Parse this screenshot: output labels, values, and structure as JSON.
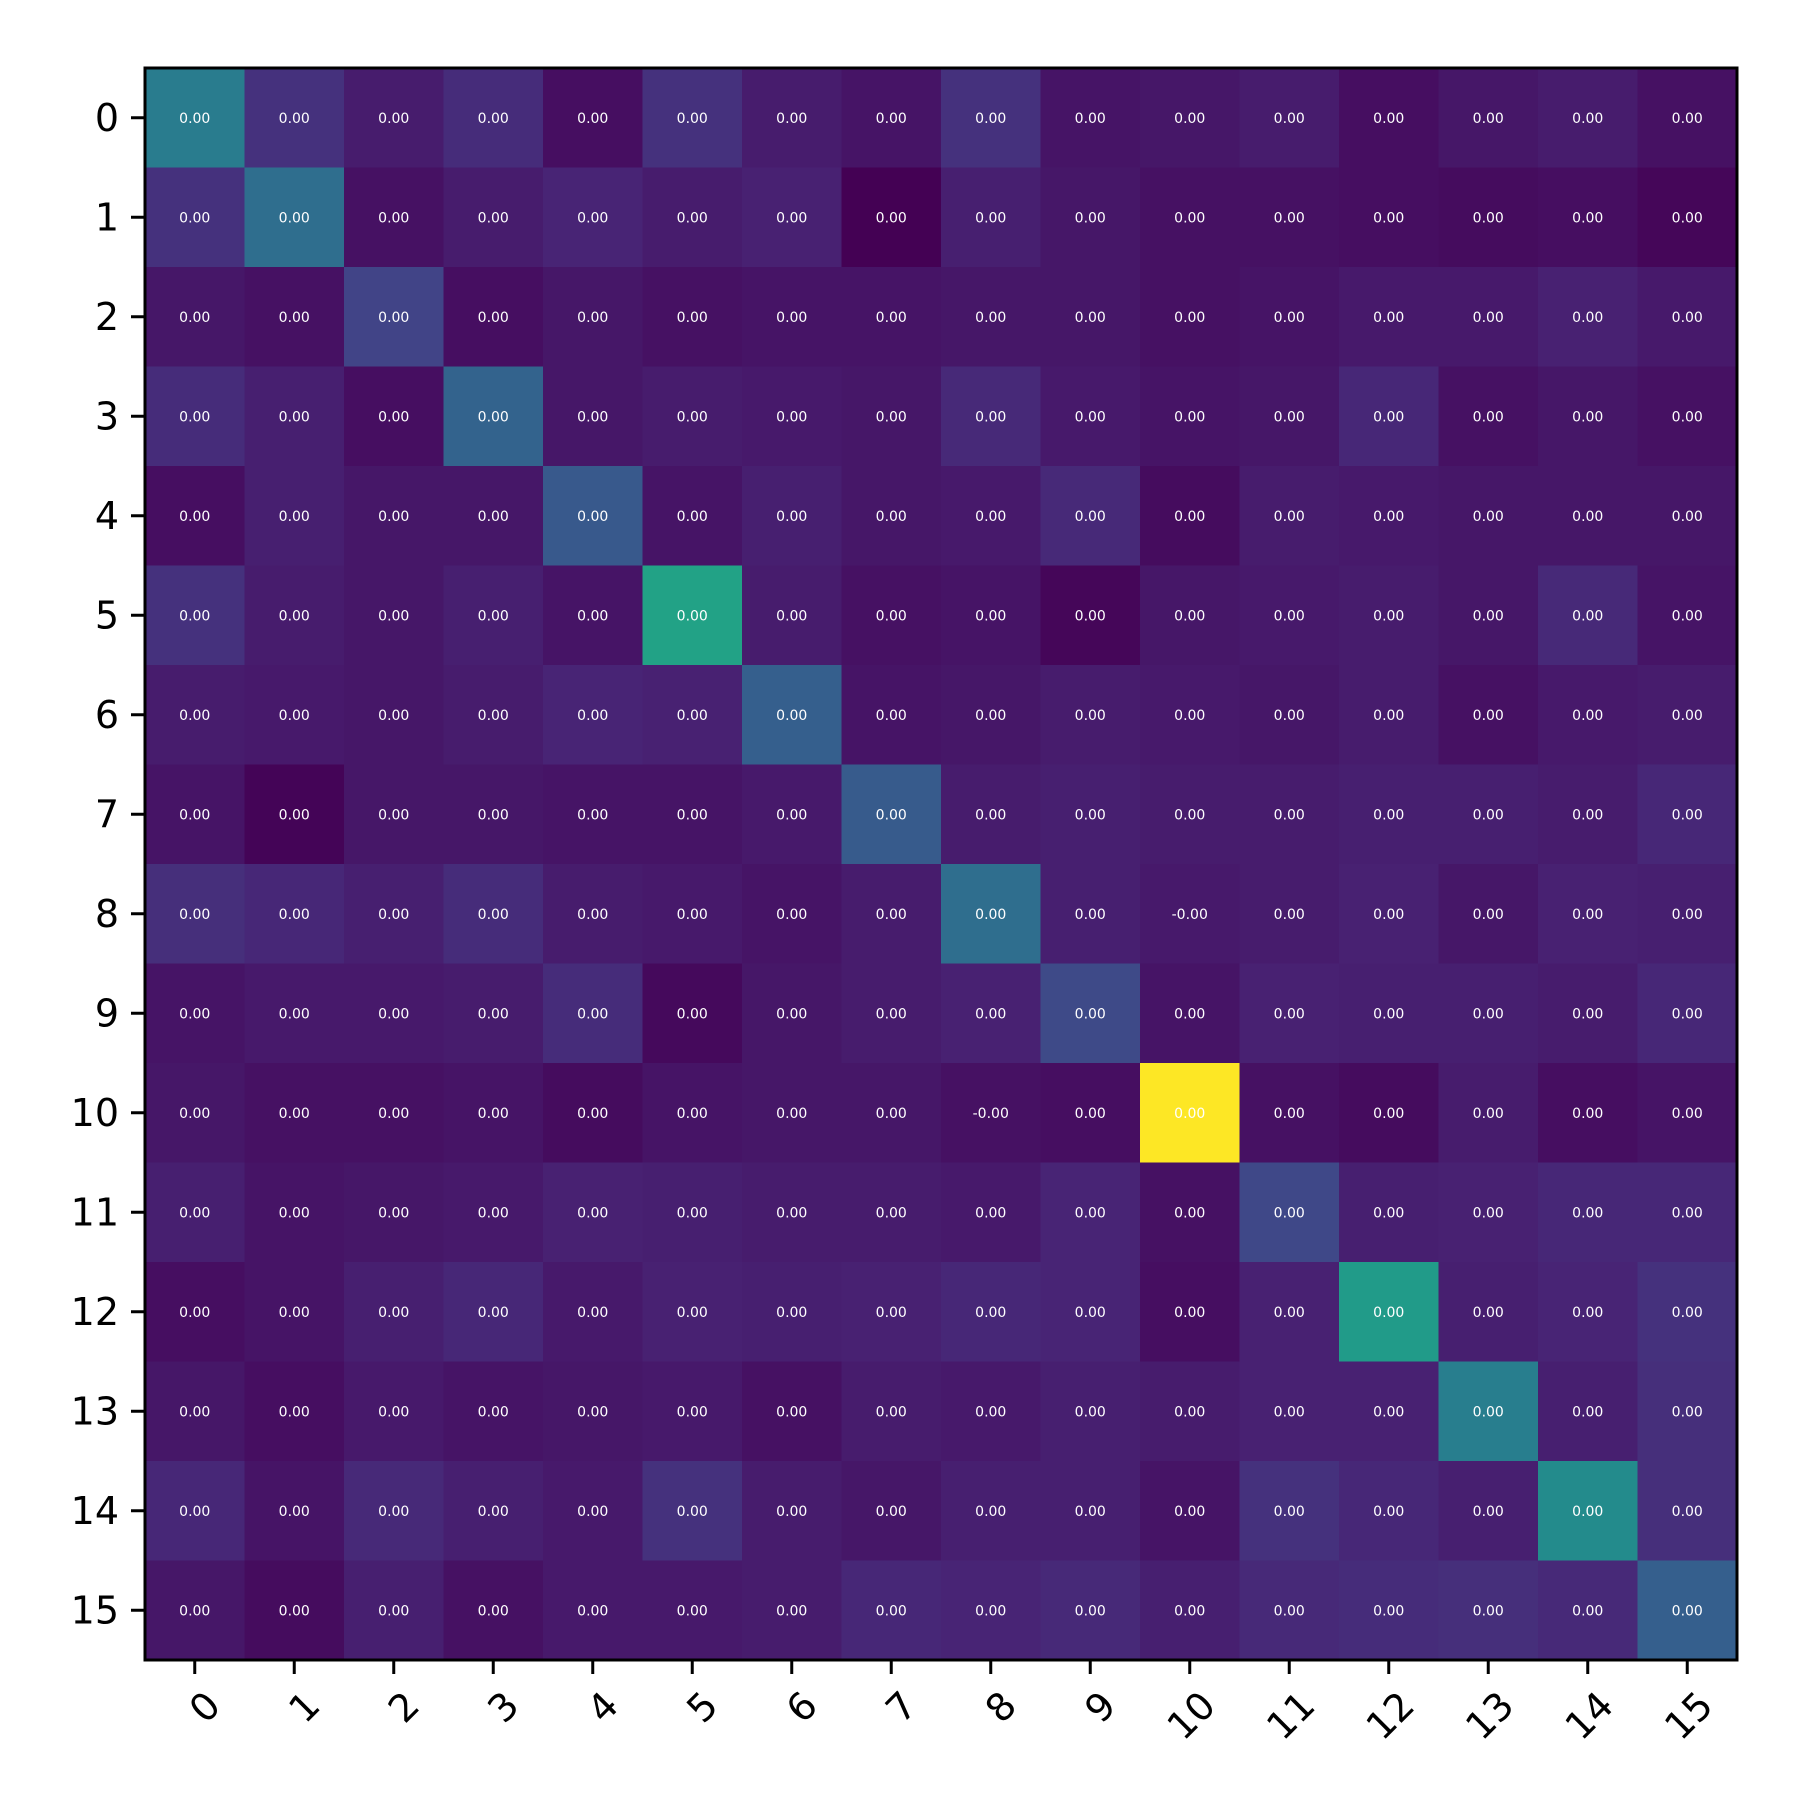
{
  "chart_data": {
    "type": "heatmap",
    "title": "",
    "xlabel": "",
    "ylabel": "",
    "colormap": "viridis",
    "colorbar": false,
    "x_tick_labels": [
      "0",
      "1",
      "2",
      "3",
      "4",
      "5",
      "6",
      "7",
      "8",
      "9",
      "10",
      "11",
      "12",
      "13",
      "14",
      "15"
    ],
    "y_tick_labels": [
      "0",
      "1",
      "2",
      "3",
      "4",
      "5",
      "6",
      "7",
      "8",
      "9",
      "10",
      "11",
      "12",
      "13",
      "14",
      "15"
    ],
    "x_tick_rotation_deg": 45,
    "color_values": [
      [
        0.52,
        0.18,
        0.1,
        0.16,
        0.05,
        0.18,
        0.1,
        0.07,
        0.18,
        0.07,
        0.08,
        0.1,
        0.05,
        0.08,
        0.1,
        0.06
      ],
      [
        0.18,
        0.45,
        0.06,
        0.1,
        0.13,
        0.1,
        0.12,
        0.0,
        0.11,
        0.08,
        0.06,
        0.06,
        0.05,
        0.04,
        0.05,
        0.02
      ],
      [
        0.08,
        0.06,
        0.25,
        0.05,
        0.08,
        0.06,
        0.07,
        0.07,
        0.08,
        0.08,
        0.06,
        0.07,
        0.09,
        0.09,
        0.12,
        0.09
      ],
      [
        0.16,
        0.11,
        0.05,
        0.4,
        0.08,
        0.1,
        0.09,
        0.08,
        0.15,
        0.09,
        0.07,
        0.08,
        0.14,
        0.06,
        0.08,
        0.06
      ],
      [
        0.05,
        0.11,
        0.08,
        0.08,
        0.35,
        0.07,
        0.11,
        0.08,
        0.09,
        0.15,
        0.04,
        0.1,
        0.09,
        0.08,
        0.08,
        0.08
      ],
      [
        0.18,
        0.1,
        0.08,
        0.11,
        0.07,
        0.72,
        0.1,
        0.06,
        0.07,
        0.02,
        0.08,
        0.09,
        0.1,
        0.08,
        0.15,
        0.07
      ],
      [
        0.1,
        0.09,
        0.08,
        0.1,
        0.13,
        0.12,
        0.38,
        0.07,
        0.08,
        0.1,
        0.09,
        0.08,
        0.1,
        0.06,
        0.09,
        0.1
      ],
      [
        0.07,
        0.01,
        0.08,
        0.08,
        0.07,
        0.07,
        0.09,
        0.36,
        0.1,
        0.11,
        0.1,
        0.1,
        0.11,
        0.11,
        0.1,
        0.14
      ],
      [
        0.17,
        0.14,
        0.11,
        0.16,
        0.1,
        0.09,
        0.07,
        0.1,
        0.45,
        0.11,
        0.09,
        0.1,
        0.12,
        0.08,
        0.12,
        0.11
      ],
      [
        0.07,
        0.09,
        0.09,
        0.1,
        0.16,
        0.03,
        0.08,
        0.1,
        0.12,
        0.28,
        0.07,
        0.12,
        0.11,
        0.11,
        0.1,
        0.14
      ],
      [
        0.08,
        0.06,
        0.06,
        0.07,
        0.04,
        0.07,
        0.08,
        0.08,
        0.06,
        0.05,
        1.0,
        0.06,
        0.04,
        0.1,
        0.05,
        0.07
      ],
      [
        0.11,
        0.07,
        0.08,
        0.09,
        0.12,
        0.11,
        0.1,
        0.1,
        0.09,
        0.13,
        0.06,
        0.27,
        0.11,
        0.12,
        0.14,
        0.14
      ],
      [
        0.05,
        0.07,
        0.11,
        0.14,
        0.09,
        0.12,
        0.11,
        0.12,
        0.14,
        0.13,
        0.05,
        0.12,
        0.68,
        0.11,
        0.13,
        0.18
      ],
      [
        0.08,
        0.05,
        0.09,
        0.07,
        0.08,
        0.09,
        0.06,
        0.1,
        0.09,
        0.11,
        0.1,
        0.12,
        0.12,
        0.53,
        0.11,
        0.17
      ],
      [
        0.14,
        0.07,
        0.15,
        0.11,
        0.09,
        0.18,
        0.1,
        0.08,
        0.11,
        0.11,
        0.07,
        0.18,
        0.14,
        0.11,
        0.6,
        0.17
      ],
      [
        0.08,
        0.04,
        0.11,
        0.06,
        0.09,
        0.09,
        0.1,
        0.14,
        0.13,
        0.15,
        0.11,
        0.15,
        0.16,
        0.17,
        0.15,
        0.38
      ]
    ],
    "cell_labels": [
      [
        "0.00",
        "0.00",
        "0.00",
        "0.00",
        "0.00",
        "0.00",
        "0.00",
        "0.00",
        "0.00",
        "0.00",
        "0.00",
        "0.00",
        "0.00",
        "0.00",
        "0.00",
        "0.00"
      ],
      [
        "0.00",
        "0.00",
        "0.00",
        "0.00",
        "0.00",
        "0.00",
        "0.00",
        "0.00",
        "0.00",
        "0.00",
        "0.00",
        "0.00",
        "0.00",
        "0.00",
        "0.00",
        "0.00"
      ],
      [
        "0.00",
        "0.00",
        "0.00",
        "0.00",
        "0.00",
        "0.00",
        "0.00",
        "0.00",
        "0.00",
        "0.00",
        "0.00",
        "0.00",
        "0.00",
        "0.00",
        "0.00",
        "0.00"
      ],
      [
        "0.00",
        "0.00",
        "0.00",
        "0.00",
        "0.00",
        "0.00",
        "0.00",
        "0.00",
        "0.00",
        "0.00",
        "0.00",
        "0.00",
        "0.00",
        "0.00",
        "0.00",
        "0.00"
      ],
      [
        "0.00",
        "0.00",
        "0.00",
        "0.00",
        "0.00",
        "0.00",
        "0.00",
        "0.00",
        "0.00",
        "0.00",
        "0.00",
        "0.00",
        "0.00",
        "0.00",
        "0.00",
        "0.00"
      ],
      [
        "0.00",
        "0.00",
        "0.00",
        "0.00",
        "0.00",
        "0.00",
        "0.00",
        "0.00",
        "0.00",
        "0.00",
        "0.00",
        "0.00",
        "0.00",
        "0.00",
        "0.00",
        "0.00"
      ],
      [
        "0.00",
        "0.00",
        "0.00",
        "0.00",
        "0.00",
        "0.00",
        "0.00",
        "0.00",
        "0.00",
        "0.00",
        "0.00",
        "0.00",
        "0.00",
        "0.00",
        "0.00",
        "0.00"
      ],
      [
        "0.00",
        "0.00",
        "0.00",
        "0.00",
        "0.00",
        "0.00",
        "0.00",
        "0.00",
        "0.00",
        "0.00",
        "0.00",
        "0.00",
        "0.00",
        "0.00",
        "0.00",
        "0.00"
      ],
      [
        "0.00",
        "0.00",
        "0.00",
        "0.00",
        "0.00",
        "0.00",
        "0.00",
        "0.00",
        "0.00",
        "0.00",
        "-0.00",
        "0.00",
        "0.00",
        "0.00",
        "0.00",
        "0.00"
      ],
      [
        "0.00",
        "0.00",
        "0.00",
        "0.00",
        "0.00",
        "0.00",
        "0.00",
        "0.00",
        "0.00",
        "0.00",
        "0.00",
        "0.00",
        "0.00",
        "0.00",
        "0.00",
        "0.00"
      ],
      [
        "0.00",
        "0.00",
        "0.00",
        "0.00",
        "0.00",
        "0.00",
        "0.00",
        "0.00",
        "-0.00",
        "0.00",
        "0.00",
        "0.00",
        "0.00",
        "0.00",
        "0.00",
        "0.00"
      ],
      [
        "0.00",
        "0.00",
        "0.00",
        "0.00",
        "0.00",
        "0.00",
        "0.00",
        "0.00",
        "0.00",
        "0.00",
        "0.00",
        "0.00",
        "0.00",
        "0.00",
        "0.00",
        "0.00"
      ],
      [
        "0.00",
        "0.00",
        "0.00",
        "0.00",
        "0.00",
        "0.00",
        "0.00",
        "0.00",
        "0.00",
        "0.00",
        "0.00",
        "0.00",
        "0.00",
        "0.00",
        "0.00",
        "0.00"
      ],
      [
        "0.00",
        "0.00",
        "0.00",
        "0.00",
        "0.00",
        "0.00",
        "0.00",
        "0.00",
        "0.00",
        "0.00",
        "0.00",
        "0.00",
        "0.00",
        "0.00",
        "0.00",
        "0.00"
      ],
      [
        "0.00",
        "0.00",
        "0.00",
        "0.00",
        "0.00",
        "0.00",
        "0.00",
        "0.00",
        "0.00",
        "0.00",
        "0.00",
        "0.00",
        "0.00",
        "0.00",
        "0.00",
        "0.00"
      ],
      [
        "0.00",
        "0.00",
        "0.00",
        "0.00",
        "0.00",
        "0.00",
        "0.00",
        "0.00",
        "0.00",
        "0.00",
        "0.00",
        "0.00",
        "0.00",
        "0.00",
        "0.00",
        "0.00"
      ]
    ]
  }
}
